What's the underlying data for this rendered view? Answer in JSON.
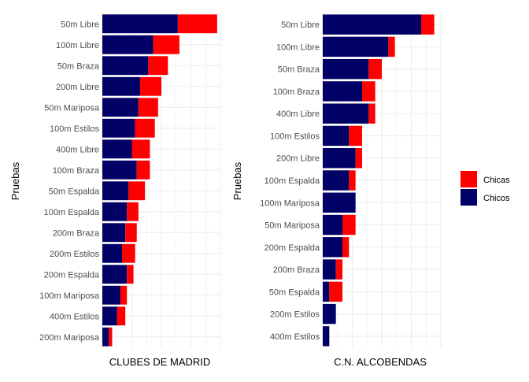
{
  "colors": {
    "chicas": "#FF0000",
    "chicos": "#000066",
    "grid": "#EBEBEB"
  },
  "legend": {
    "placement": "right",
    "items": [
      {
        "key": "chicas",
        "label": "Chicas"
      },
      {
        "key": "chicos",
        "label": "Chicos"
      }
    ]
  },
  "chart_data": [
    {
      "type": "bar",
      "orientation": "horizontal",
      "stacked": true,
      "xlabel": "CLUBES DE MADRID",
      "ylabel": "Pruebas",
      "grid": true,
      "x_ticks_shown": false,
      "xlim": [
        0,
        36
      ],
      "categories": [
        "200m  Mariposa",
        "400m  Estilos",
        "100m  Mariposa",
        "200m  Espalda",
        "200m  Estilos",
        "200m  Braza",
        "100m  Espalda",
        "50m  Espalda",
        "100m  Braza",
        "400m  Libre",
        "100m  Estilos",
        "50m  Mariposa",
        "200m  Libre",
        "50m  Braza",
        "100m  Libre",
        "50m  Libre"
      ],
      "series": [
        {
          "name": "Chicos",
          "key": "chicos",
          "values": [
            2,
            4.5,
            5.5,
            7.5,
            6,
            7,
            7.5,
            8,
            10.5,
            9,
            10,
            11,
            11.5,
            14,
            15.5,
            23
          ]
        },
        {
          "name": "Chicas",
          "key": "chicas",
          "values": [
            1,
            2.5,
            2,
            2,
            4,
            3.5,
            3.5,
            5,
            4,
            5.5,
            6,
            6,
            6.5,
            6,
            8,
            12
          ]
        }
      ]
    },
    {
      "type": "bar",
      "orientation": "horizontal",
      "stacked": true,
      "xlabel": "C.N. ALCOBENDAS",
      "ylabel": "Pruebas",
      "grid": true,
      "x_ticks_shown": false,
      "xlim": [
        0,
        18
      ],
      "categories": [
        "400m  Estilos",
        "200m  Estilos",
        "50m  Espalda",
        "200m  Braza",
        "200m  Espalda",
        "50m  Mariposa",
        "100m  Mariposa",
        "100m  Espalda",
        "200m  Libre",
        "100m  Estilos",
        "400m  Libre",
        "100m  Braza",
        "50m  Braza",
        "100m  Libre",
        "50m  Libre"
      ],
      "series": [
        {
          "name": "Chicos",
          "key": "chicos",
          "values": [
            1,
            2,
            1,
            2,
            3,
            3,
            5,
            4,
            5,
            4,
            7,
            6,
            7,
            10,
            15
          ]
        },
        {
          "name": "Chicas",
          "key": "chicas",
          "values": [
            0,
            0,
            2,
            1,
            1,
            2,
            0,
            1,
            1,
            2,
            1,
            2,
            2,
            1,
            2
          ]
        }
      ]
    }
  ]
}
